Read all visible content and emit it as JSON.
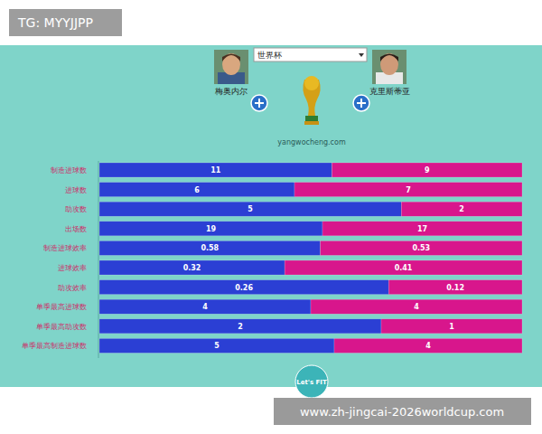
{
  "header": {
    "watermark": "TG: MYYJJPP",
    "selector": "世界杯",
    "site": "yangwocheng.com",
    "logo": "Let's FIT"
  },
  "footer": {
    "url": "www.zh-jingcai-2026worldcup.com"
  },
  "chart_data": {
    "type": "bar",
    "orientation": "horizontal",
    "stacked": true,
    "data_labels": true,
    "tick_labels": "y",
    "categories": [
      "制造进球数",
      "进球数",
      "助攻数",
      "出场数",
      "制造进球效率",
      "进球效率",
      "助攻效率",
      "单季最高进球数",
      "单季最高助攻数",
      "单季最高制造进球数"
    ],
    "series": [
      {
        "name": "梅奥内尔",
        "color": "#2b3fd4",
        "values": [
          11,
          6,
          5,
          19,
          0.58,
          0.32,
          0.26,
          4,
          2,
          5
        ]
      },
      {
        "name": "克里斯蒂亚",
        "color": "#d8168c",
        "values": [
          9,
          7,
          2,
          17,
          0.53,
          0.41,
          0.12,
          4,
          1,
          4
        ]
      }
    ]
  }
}
